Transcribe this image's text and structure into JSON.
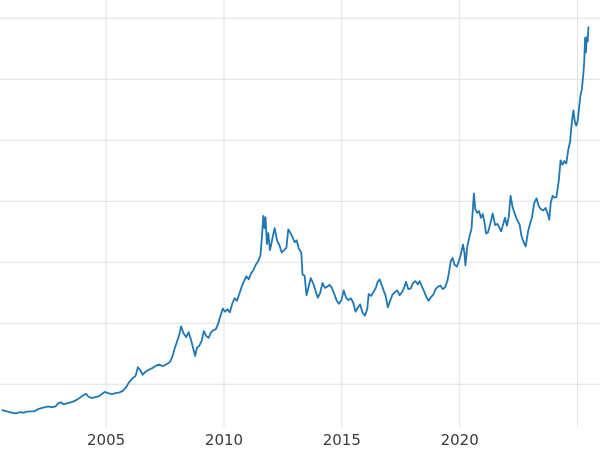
{
  "chart_data": {
    "type": "line",
    "title": "",
    "legend": null,
    "line_color": "#1f77b4",
    "line_width": 1.8,
    "grid_color": "#e0e0e0",
    "tick_label_color": "#3a3a3a",
    "tick_label_size": 15,
    "grid": true,
    "legend_position": "none",
    "xlim": [
      2000.5,
      2025.95
    ],
    "ylim": [
      150,
      3650
    ],
    "xticks": [
      {
        "value": 2005,
        "label": "2005"
      },
      {
        "value": 2010,
        "label": "2010"
      },
      {
        "value": 2015,
        "label": "2015"
      },
      {
        "value": 2020,
        "label": "2020"
      },
      {
        "value": 2025,
        "label": ""
      }
    ],
    "yticks": [
      500,
      1000,
      1500,
      2000,
      2500,
      3000,
      3500
    ],
    "points": [
      [
        2000.6,
        288
      ],
      [
        2000.75,
        280
      ],
      [
        2000.9,
        272
      ],
      [
        2001.05,
        265
      ],
      [
        2001.2,
        262
      ],
      [
        2001.35,
        272
      ],
      [
        2001.5,
        267
      ],
      [
        2001.65,
        276
      ],
      [
        2001.8,
        278
      ],
      [
        2001.95,
        279
      ],
      [
        2002.1,
        295
      ],
      [
        2002.25,
        305
      ],
      [
        2002.4,
        312
      ],
      [
        2002.55,
        318
      ],
      [
        2002.7,
        312
      ],
      [
        2002.85,
        318
      ],
      [
        2003.0,
        348
      ],
      [
        2003.1,
        352
      ],
      [
        2003.2,
        335
      ],
      [
        2003.35,
        344
      ],
      [
        2003.5,
        352
      ],
      [
        2003.65,
        362
      ],
      [
        2003.8,
        378
      ],
      [
        2003.95,
        398
      ],
      [
        2004.05,
        412
      ],
      [
        2004.15,
        422
      ],
      [
        2004.25,
        398
      ],
      [
        2004.4,
        388
      ],
      [
        2004.55,
        395
      ],
      [
        2004.7,
        402
      ],
      [
        2004.85,
        425
      ],
      [
        2004.95,
        438
      ],
      [
        2005.1,
        426
      ],
      [
        2005.25,
        420
      ],
      [
        2005.4,
        428
      ],
      [
        2005.55,
        432
      ],
      [
        2005.7,
        445
      ],
      [
        2005.85,
        476
      ],
      [
        2005.95,
        510
      ],
      [
        2006.1,
        545
      ],
      [
        2006.25,
        570
      ],
      [
        2006.35,
        640
      ],
      [
        2006.45,
        615
      ],
      [
        2006.55,
        578
      ],
      [
        2006.65,
        600
      ],
      [
        2006.8,
        618
      ],
      [
        2006.95,
        632
      ],
      [
        2007.1,
        650
      ],
      [
        2007.25,
        662
      ],
      [
        2007.4,
        648
      ],
      [
        2007.55,
        662
      ],
      [
        2007.7,
        680
      ],
      [
        2007.8,
        720
      ],
      [
        2007.9,
        790
      ],
      [
        2008.0,
        845
      ],
      [
        2008.1,
        905
      ],
      [
        2008.18,
        975
      ],
      [
        2008.28,
        920
      ],
      [
        2008.4,
        885
      ],
      [
        2008.5,
        928
      ],
      [
        2008.6,
        865
      ],
      [
        2008.7,
        790
      ],
      [
        2008.78,
        732
      ],
      [
        2008.85,
        800
      ],
      [
        2008.95,
        815
      ],
      [
        2009.05,
        855
      ],
      [
        2009.15,
        935
      ],
      [
        2009.25,
        895
      ],
      [
        2009.35,
        880
      ],
      [
        2009.45,
        925
      ],
      [
        2009.55,
        945
      ],
      [
        2009.65,
        950
      ],
      [
        2009.75,
        995
      ],
      [
        2009.85,
        1060
      ],
      [
        2009.95,
        1120
      ],
      [
        2010.05,
        1095
      ],
      [
        2010.15,
        1115
      ],
      [
        2010.25,
        1090
      ],
      [
        2010.35,
        1160
      ],
      [
        2010.45,
        1205
      ],
      [
        2010.55,
        1185
      ],
      [
        2010.65,
        1240
      ],
      [
        2010.75,
        1300
      ],
      [
        2010.85,
        1345
      ],
      [
        2010.95,
        1385
      ],
      [
        2011.05,
        1360
      ],
      [
        2011.15,
        1410
      ],
      [
        2011.25,
        1435
      ],
      [
        2011.35,
        1480
      ],
      [
        2011.45,
        1510
      ],
      [
        2011.55,
        1560
      ],
      [
        2011.62,
        1740
      ],
      [
        2011.67,
        1880
      ],
      [
        2011.72,
        1780
      ],
      [
        2011.76,
        1870
      ],
      [
        2011.82,
        1650
      ],
      [
        2011.88,
        1740
      ],
      [
        2011.95,
        1600
      ],
      [
        2012.0,
        1640
      ],
      [
        2012.08,
        1720
      ],
      [
        2012.15,
        1780
      ],
      [
        2012.25,
        1680
      ],
      [
        2012.35,
        1640
      ],
      [
        2012.45,
        1580
      ],
      [
        2012.55,
        1600
      ],
      [
        2012.65,
        1620
      ],
      [
        2012.73,
        1770
      ],
      [
        2012.82,
        1740
      ],
      [
        2012.9,
        1710
      ],
      [
        2013.0,
        1665
      ],
      [
        2013.08,
        1680
      ],
      [
        2013.18,
        1610
      ],
      [
        2013.28,
        1580
      ],
      [
        2013.33,
        1400
      ],
      [
        2013.42,
        1390
      ],
      [
        2013.5,
        1230
      ],
      [
        2013.58,
        1290
      ],
      [
        2013.68,
        1370
      ],
      [
        2013.78,
        1330
      ],
      [
        2013.88,
        1270
      ],
      [
        2013.98,
        1210
      ],
      [
        2014.08,
        1250
      ],
      [
        2014.18,
        1330
      ],
      [
        2014.28,
        1290
      ],
      [
        2014.38,
        1300
      ],
      [
        2014.48,
        1315
      ],
      [
        2014.58,
        1290
      ],
      [
        2014.68,
        1240
      ],
      [
        2014.78,
        1185
      ],
      [
        2014.88,
        1160
      ],
      [
        2014.98,
        1190
      ],
      [
        2015.08,
        1270
      ],
      [
        2015.18,
        1210
      ],
      [
        2015.28,
        1190
      ],
      [
        2015.38,
        1205
      ],
      [
        2015.48,
        1170
      ],
      [
        2015.58,
        1095
      ],
      [
        2015.68,
        1130
      ],
      [
        2015.78,
        1155
      ],
      [
        2015.88,
        1085
      ],
      [
        2015.98,
        1062
      ],
      [
        2016.08,
        1120
      ],
      [
        2016.14,
        1240
      ],
      [
        2016.24,
        1225
      ],
      [
        2016.34,
        1255
      ],
      [
        2016.44,
        1290
      ],
      [
        2016.52,
        1340
      ],
      [
        2016.6,
        1360
      ],
      [
        2016.7,
        1310
      ],
      [
        2016.78,
        1265
      ],
      [
        2016.86,
        1225
      ],
      [
        2016.95,
        1130
      ],
      [
        2017.05,
        1185
      ],
      [
        2017.15,
        1235
      ],
      [
        2017.25,
        1255
      ],
      [
        2017.35,
        1270
      ],
      [
        2017.45,
        1230
      ],
      [
        2017.55,
        1255
      ],
      [
        2017.65,
        1295
      ],
      [
        2017.72,
        1340
      ],
      [
        2017.82,
        1280
      ],
      [
        2017.92,
        1285
      ],
      [
        2018.02,
        1330
      ],
      [
        2018.12,
        1345
      ],
      [
        2018.22,
        1320
      ],
      [
        2018.3,
        1345
      ],
      [
        2018.4,
        1300
      ],
      [
        2018.5,
        1255
      ],
      [
        2018.6,
        1210
      ],
      [
        2018.68,
        1185
      ],
      [
        2018.78,
        1215
      ],
      [
        2018.88,
        1235
      ],
      [
        2018.98,
        1282
      ],
      [
        2019.08,
        1300
      ],
      [
        2019.18,
        1310
      ],
      [
        2019.28,
        1280
      ],
      [
        2019.38,
        1295
      ],
      [
        2019.48,
        1350
      ],
      [
        2019.55,
        1425
      ],
      [
        2019.62,
        1510
      ],
      [
        2019.7,
        1535
      ],
      [
        2019.78,
        1480
      ],
      [
        2019.88,
        1465
      ],
      [
        2019.98,
        1520
      ],
      [
        2020.06,
        1575
      ],
      [
        2020.14,
        1645
      ],
      [
        2020.2,
        1580
      ],
      [
        2020.24,
        1475
      ],
      [
        2020.32,
        1630
      ],
      [
        2020.42,
        1715
      ],
      [
        2020.5,
        1775
      ],
      [
        2020.56,
        1940
      ],
      [
        2020.6,
        2065
      ],
      [
        2020.66,
        1935
      ],
      [
        2020.74,
        1905
      ],
      [
        2020.82,
        1920
      ],
      [
        2020.9,
        1865
      ],
      [
        2020.98,
        1895
      ],
      [
        2021.04,
        1840
      ],
      [
        2021.12,
        1735
      ],
      [
        2021.2,
        1745
      ],
      [
        2021.3,
        1820
      ],
      [
        2021.4,
        1900
      ],
      [
        2021.5,
        1805
      ],
      [
        2021.6,
        1815
      ],
      [
        2021.68,
        1785
      ],
      [
        2021.76,
        1755
      ],
      [
        2021.84,
        1810
      ],
      [
        2021.92,
        1865
      ],
      [
        2022.0,
        1800
      ],
      [
        2022.08,
        1875
      ],
      [
        2022.16,
        2045
      ],
      [
        2022.24,
        1955
      ],
      [
        2022.34,
        1895
      ],
      [
        2022.44,
        1845
      ],
      [
        2022.54,
        1810
      ],
      [
        2022.62,
        1715
      ],
      [
        2022.72,
        1660
      ],
      [
        2022.8,
        1630
      ],
      [
        2022.9,
        1755
      ],
      [
        2022.98,
        1815
      ],
      [
        2023.06,
        1865
      ],
      [
        2023.16,
        1985
      ],
      [
        2023.26,
        2025
      ],
      [
        2023.34,
        1965
      ],
      [
        2023.44,
        1935
      ],
      [
        2023.54,
        1925
      ],
      [
        2023.64,
        1945
      ],
      [
        2023.72,
        1905
      ],
      [
        2023.8,
        1850
      ],
      [
        2023.86,
        1985
      ],
      [
        2023.94,
        2045
      ],
      [
        2024.02,
        2030
      ],
      [
        2024.1,
        2035
      ],
      [
        2024.2,
        2165
      ],
      [
        2024.28,
        2335
      ],
      [
        2024.36,
        2300
      ],
      [
        2024.44,
        2330
      ],
      [
        2024.52,
        2310
      ],
      [
        2024.6,
        2420
      ],
      [
        2024.68,
        2490
      ],
      [
        2024.76,
        2655
      ],
      [
        2024.82,
        2745
      ],
      [
        2024.88,
        2655
      ],
      [
        2024.94,
        2620
      ],
      [
        2025.0,
        2655
      ],
      [
        2025.06,
        2760
      ],
      [
        2025.12,
        2865
      ],
      [
        2025.18,
        2915
      ],
      [
        2025.24,
        3040
      ],
      [
        2025.28,
        3140
      ],
      [
        2025.32,
        3340
      ],
      [
        2025.35,
        3220
      ],
      [
        2025.39,
        3345
      ],
      [
        2025.43,
        3310
      ],
      [
        2025.46,
        3425
      ]
    ]
  }
}
